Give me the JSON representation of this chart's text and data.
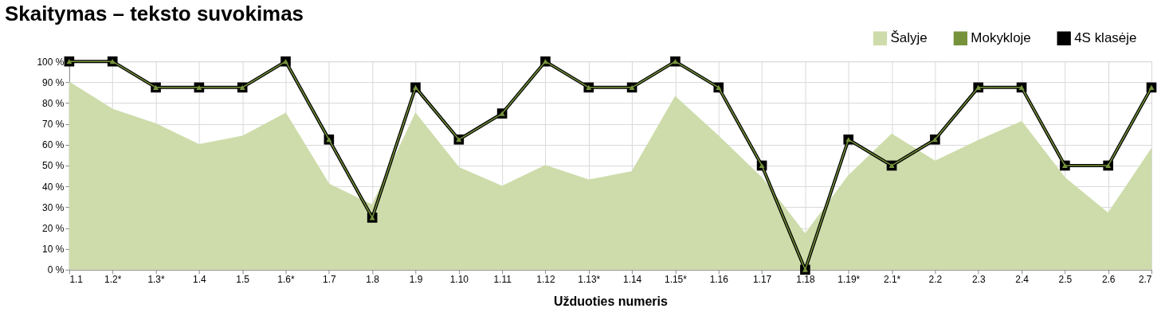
{
  "chart_data": {
    "type": "line",
    "title": "Skaitymas – teksto suvokimas",
    "xlabel": "Užduoties numeris",
    "categories": [
      "1.1",
      "1.2*",
      "1.3*",
      "1.4",
      "1.5",
      "1.6*",
      "1.7",
      "1.8",
      "1.9",
      "1.10",
      "1.11",
      "1.12",
      "1.13*",
      "1.14",
      "1.15*",
      "1.16",
      "1.17",
      "1.18",
      "1.19*",
      "2.1*",
      "2.2",
      "2.3",
      "2.4",
      "2.5",
      "2.6",
      "2.7"
    ],
    "series": [
      {
        "name": "Šalyje",
        "type": "area",
        "color": "#cddcaa",
        "values": [
          90,
          77,
          70,
          60,
          64,
          75,
          41,
          31,
          75,
          49,
          40,
          50,
          43,
          47,
          83,
          64,
          44,
          17,
          45,
          65,
          52,
          62,
          71,
          44,
          27,
          58
        ]
      },
      {
        "name": "Mokykloje",
        "marker": "triangle",
        "color": "#76933c",
        "values": [
          100,
          100,
          87.5,
          87.5,
          87.5,
          100,
          62.5,
          25,
          87.5,
          62.5,
          75,
          100,
          87.5,
          87.5,
          100,
          87.5,
          50,
          0,
          62.5,
          50,
          62.5,
          87.5,
          87.5,
          50,
          50,
          87.5
        ]
      },
      {
        "name": "4S klasėje",
        "marker": "square",
        "color": "#000000",
        "values": [
          100,
          100,
          87.5,
          87.5,
          87.5,
          100,
          62.5,
          25,
          87.5,
          62.5,
          75,
          100,
          87.5,
          87.5,
          100,
          87.5,
          50,
          0,
          62.5,
          50,
          62.5,
          87.5,
          87.5,
          50,
          50,
          87.5
        ]
      }
    ],
    "ylim": [
      0,
      100
    ],
    "yticks": [
      {
        "value": 0,
        "label": "0 %"
      },
      {
        "value": 10,
        "label": "10 %"
      },
      {
        "value": 20,
        "label": "20 %"
      },
      {
        "value": 30,
        "label": "30 %"
      },
      {
        "value": 40,
        "label": "40 %"
      },
      {
        "value": 50,
        "label": "50 %"
      },
      {
        "value": 60,
        "label": "60 %"
      },
      {
        "value": 70,
        "label": "70 %"
      },
      {
        "value": 80,
        "label": "80 %"
      },
      {
        "value": 90,
        "label": "90 %"
      },
      {
        "value": 100,
        "label": "100 %"
      }
    ],
    "grid": true,
    "legend": "top right",
    "line_style": "solid"
  }
}
